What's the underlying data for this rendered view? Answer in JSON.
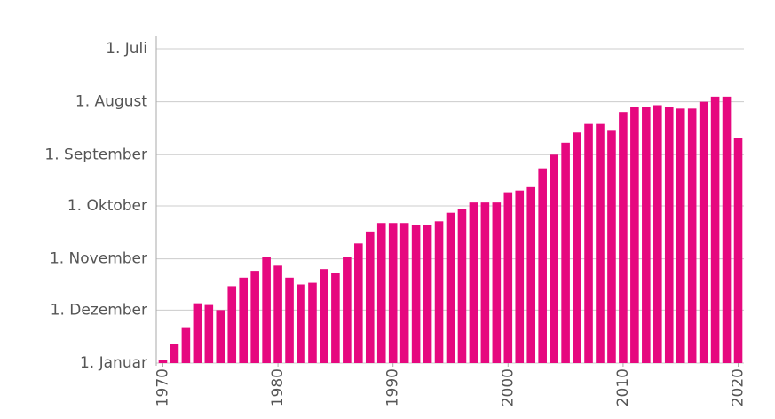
{
  "chart_data": {
    "type": "bar",
    "color": "#e6087f",
    "x": [
      1970,
      1971,
      1972,
      1973,
      1974,
      1975,
      1976,
      1977,
      1978,
      1979,
      1980,
      1981,
      1982,
      1983,
      1984,
      1985,
      1986,
      1987,
      1988,
      1989,
      1990,
      1991,
      1992,
      1993,
      1994,
      1995,
      1996,
      1997,
      1998,
      1999,
      2000,
      2001,
      2002,
      2003,
      2004,
      2005,
      2006,
      2007,
      2008,
      2009,
      2010,
      2011,
      2012,
      2013,
      2014,
      2015,
      2016,
      2017,
      2018,
      2019,
      2020
    ],
    "values": [
      364,
      355,
      345,
      331,
      332,
      335,
      321,
      316,
      312,
      304,
      309,
      316,
      320,
      319,
      311,
      313,
      304,
      296,
      289,
      284,
      284,
      284,
      285,
      285,
      283,
      278,
      276,
      272,
      272,
      272,
      266,
      265,
      263,
      252,
      244,
      237,
      231,
      226,
      226,
      230,
      219,
      216,
      216,
      215,
      216,
      217,
      217,
      213,
      210,
      210,
      234
    ],
    "xlim": [
      1969.5,
      2020.5
    ],
    "xticks": [
      1970,
      1980,
      1990,
      2000,
      2010,
      2020
    ],
    "ylim": [
      366,
      182
    ],
    "yticks": [
      {
        "value": 182,
        "label": "1. Juli"
      },
      {
        "value": 213,
        "label": "1. August"
      },
      {
        "value": 244,
        "label": "1. September"
      },
      {
        "value": 274,
        "label": "1. Oktober"
      },
      {
        "value": 305,
        "label": "1. November"
      },
      {
        "value": 335,
        "label": "1. Dezember"
      },
      {
        "value": 366,
        "label": "1. Januar"
      }
    ],
    "grid": true
  }
}
